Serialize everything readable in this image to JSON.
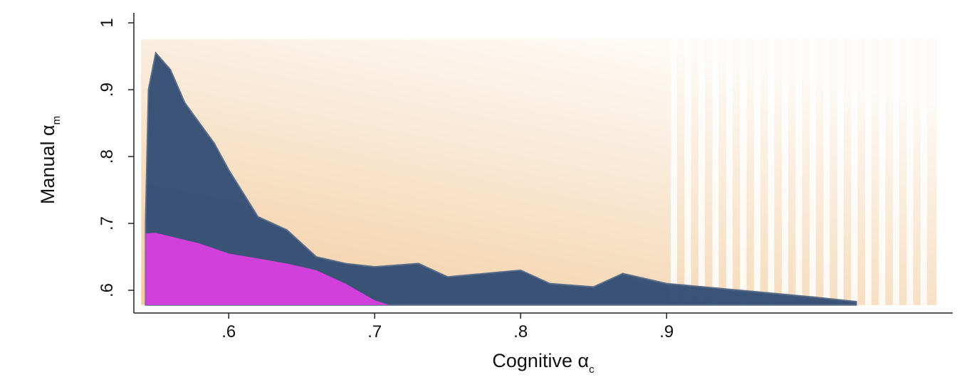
{
  "chart_data": {
    "type": "area",
    "x_label": {
      "text": "Cognitive α",
      "subscript": "c"
    },
    "y_label": {
      "text": "Manual α",
      "subscript": "m"
    },
    "xlim": [
      0.535,
      1.096
    ],
    "ylim": [
      0.566,
      1.015
    ],
    "xticks": [
      {
        "value": 0.6,
        "label": ".6"
      },
      {
        "value": 0.7,
        "label": ".7"
      },
      {
        "value": 0.8,
        "label": ".8"
      },
      {
        "value": 0.9,
        "label": ".9"
      }
    ],
    "yticks": [
      {
        "value": 0.6,
        "label": ".6"
      },
      {
        "value": 0.7,
        "label": ".7"
      },
      {
        "value": 0.8,
        "label": ".8"
      },
      {
        "value": 0.9,
        "label": ".9"
      },
      1
    ],
    "series": [
      {
        "color": "#f2cca0",
        "y0": 0.578,
        "x": [
          0.54,
          1.085
        ],
        "values": [
          0.975,
          0.975
        ]
      },
      {
        "color": "#2f4b72",
        "y0": 0.578,
        "x": [
          0.543,
          0.545,
          0.55,
          0.56,
          0.57,
          0.58,
          0.59,
          0.6,
          0.62,
          0.64,
          0.66,
          0.68,
          0.7,
          0.73,
          0.75,
          0.8,
          0.82,
          0.85,
          0.87,
          0.9,
          0.95,
          1.0,
          1.03
        ],
        "values": [
          0.7,
          0.9,
          0.955,
          0.93,
          0.88,
          0.85,
          0.82,
          0.78,
          0.71,
          0.69,
          0.65,
          0.64,
          0.635,
          0.64,
          0.62,
          0.63,
          0.61,
          0.605,
          0.625,
          0.61,
          0.6,
          0.59,
          0.583
        ]
      },
      {
        "color": "#d93fe0",
        "y0": 0.578,
        "x": [
          0.543,
          0.55,
          0.58,
          0.6,
          0.64,
          0.66,
          0.68,
          0.7,
          0.71
        ],
        "values": [
          0.685,
          0.686,
          0.67,
          0.655,
          0.64,
          0.63,
          0.61,
          0.585,
          0.578
        ]
      }
    ]
  }
}
